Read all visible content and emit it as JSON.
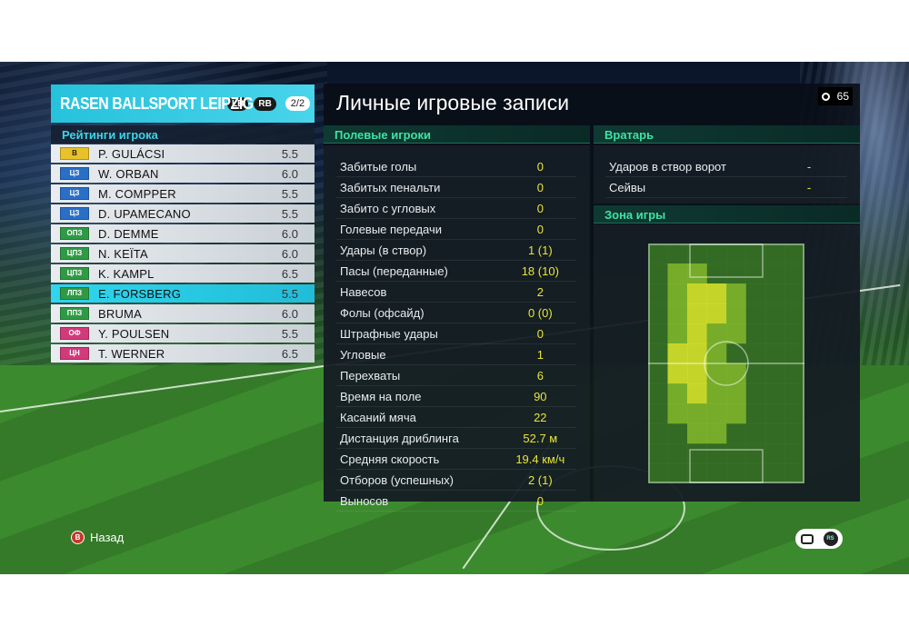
{
  "team": {
    "name": "RASEN BALLSPORT LEIPZIG",
    "lb_label": "LB",
    "rb_label": "RB",
    "page": "2/2"
  },
  "ratings": {
    "title": "Рейтинги игрока",
    "players": [
      {
        "pos": "В",
        "pos_color": "#e8c22a",
        "pos_text_color": "#222222",
        "name": "P. GULÁCSI",
        "rating": "5.5",
        "selected": false
      },
      {
        "pos": "ЦЗ",
        "pos_color": "#2a6fc7",
        "pos_text_color": "#ffffff",
        "name": "W. ORBAN",
        "rating": "6.0",
        "selected": false
      },
      {
        "pos": "ЦЗ",
        "pos_color": "#2a6fc7",
        "pos_text_color": "#ffffff",
        "name": "M. COMPPER",
        "rating": "5.5",
        "selected": false
      },
      {
        "pos": "ЦЗ",
        "pos_color": "#2a6fc7",
        "pos_text_color": "#ffffff",
        "name": "D. UPAMECANO",
        "rating": "5.5",
        "selected": false
      },
      {
        "pos": "ОПЗ",
        "pos_color": "#2f9a45",
        "pos_text_color": "#ffffff",
        "name": "D. DEMME",
        "rating": "6.0",
        "selected": false
      },
      {
        "pos": "ЦПЗ",
        "pos_color": "#2f9a45",
        "pos_text_color": "#ffffff",
        "name": "N. KEÏTA",
        "rating": "6.0",
        "selected": false
      },
      {
        "pos": "ЦПЗ",
        "pos_color": "#2f9a45",
        "pos_text_color": "#ffffff",
        "name": "K. KAMPL",
        "rating": "6.5",
        "selected": false
      },
      {
        "pos": "ЛПЗ",
        "pos_color": "#2f9a45",
        "pos_text_color": "#ffffff",
        "name": "E. FORSBERG",
        "rating": "5.5",
        "selected": true
      },
      {
        "pos": "ППЗ",
        "pos_color": "#2f9a45",
        "pos_text_color": "#ffffff",
        "name": "BRUMA",
        "rating": "6.0",
        "selected": false
      },
      {
        "pos": "ОФ",
        "pos_color": "#d23a7a",
        "pos_text_color": "#ffffff",
        "name": "Y. POULSEN",
        "rating": "5.5",
        "selected": false
      },
      {
        "pos": "ЦН",
        "pos_color": "#d23a7a",
        "pos_text_color": "#ffffff",
        "name": "T. WERNER",
        "rating": "6.5",
        "selected": false
      }
    ]
  },
  "records": {
    "title": "Личные игровые записи",
    "timer": "65",
    "field_players_header": "Полевые игроки",
    "stats": [
      {
        "label": "Забитые голы",
        "value": "0"
      },
      {
        "label": "Забитых пенальти",
        "value": "0"
      },
      {
        "label": "Забито с угловых",
        "value": "0"
      },
      {
        "label": "Голевые передачи",
        "value": "0"
      },
      {
        "label": "Удары (в створ)",
        "value": "1 (1)"
      },
      {
        "label": "Пасы (переданные)",
        "value": "18 (10)"
      },
      {
        "label": "Навесов",
        "value": "2"
      },
      {
        "label": "Фолы (офсайд)",
        "value": "0 (0)"
      },
      {
        "label": "Штрафные удары",
        "value": "0"
      },
      {
        "label": "Угловые",
        "value": "1"
      },
      {
        "label": "Перехваты",
        "value": "6"
      },
      {
        "label": "Время на поле",
        "value": "90"
      },
      {
        "label": "Касаний мяча",
        "value": "22"
      },
      {
        "label": "Дистанция дриблинга",
        "value": "52.7 м"
      },
      {
        "label": "Средняя скорость",
        "value": "19.4 км/ч"
      },
      {
        "label": "Отборов (успешных)",
        "value": "2 (1)"
      },
      {
        "label": "Выносов",
        "value": "0"
      }
    ],
    "goalkeeper_header": "Вратарь",
    "gk_stats": [
      {
        "label": "Ударов в створ ворот",
        "value": "-"
      },
      {
        "label": "Сейвы",
        "value": "-"
      }
    ],
    "zone_header": "Зона игры"
  },
  "controls": {
    "back_button": "B",
    "back_label": "Назад",
    "rs_label": "RS"
  },
  "colors": {
    "accent": "#2fd6ee",
    "section_header_text": "#3fe3a3",
    "stat_value": "#e8e43a",
    "heat_high": "#d7e12a",
    "heat_mid": "#7fb52a",
    "heat_low": "#3f7a26"
  },
  "icons": {
    "timer": "clock-icon",
    "back": "b-button-icon",
    "chat": "chat-icon",
    "rs": "rs-stick-icon"
  }
}
